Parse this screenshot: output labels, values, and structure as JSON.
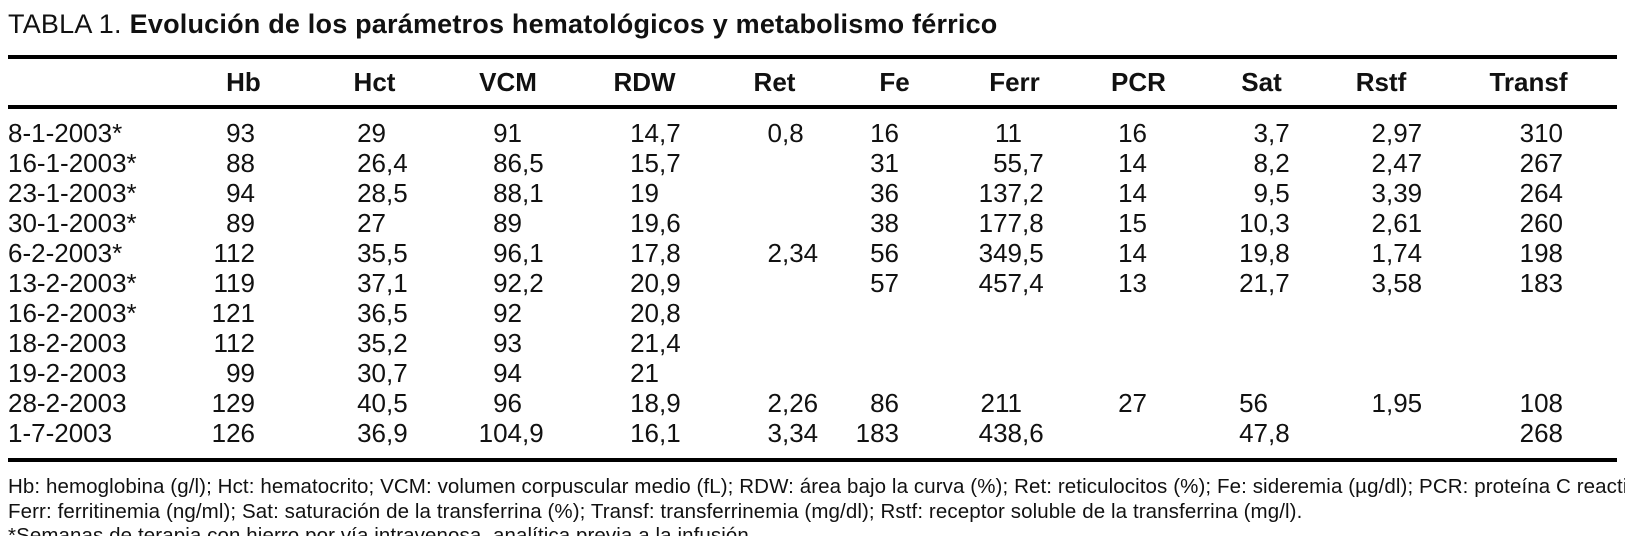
{
  "title": {
    "prefix": "TABLA 1.",
    "text": "Evolución de los parámetros hematológicos y metabolismo férrico"
  },
  "table": {
    "columns": [
      "Hb",
      "Hct",
      "VCM",
      "RDW",
      "Ret",
      "Fe",
      "Ferr",
      "PCR",
      "Sat",
      "Rstf",
      "Transf"
    ],
    "rows": [
      {
        "label": "8-1-2003*",
        "values": [
          "93",
          "29",
          "91",
          "14,7",
          "0,8",
          "16",
          "11",
          "16",
          "3,7",
          "2,97",
          "310"
        ]
      },
      {
        "label": "16-1-2003*",
        "values": [
          "88",
          "26,4",
          "86,5",
          "15,7",
          "",
          "31",
          "55,7",
          "14",
          "8,2",
          "2,47",
          "267"
        ]
      },
      {
        "label": "23-1-2003*",
        "values": [
          "94",
          "28,5",
          "88,1",
          "19",
          "",
          "36",
          "137,2",
          "14",
          "9,5",
          "3,39",
          "264"
        ]
      },
      {
        "label": "30-1-2003*",
        "values": [
          "89",
          "27",
          "89",
          "19,6",
          "",
          "38",
          "177,8",
          "15",
          "10,3",
          "2,61",
          "260"
        ]
      },
      {
        "label": "6-2-2003*",
        "values": [
          "112",
          "35,5",
          "96,1",
          "17,8",
          "2,34",
          "56",
          "349,5",
          "14",
          "19,8",
          "1,74",
          "198"
        ]
      },
      {
        "label": "13-2-2003*",
        "values": [
          "119",
          "37,1",
          "92,2",
          "20,9",
          "",
          "57",
          "457,4",
          "13",
          "21,7",
          "3,58",
          "183"
        ]
      },
      {
        "label": "16-2-2003*",
        "values": [
          "121",
          "36,5",
          "92",
          "20,8",
          "",
          "",
          "",
          "",
          "",
          "",
          ""
        ]
      },
      {
        "label": "18-2-2003",
        "values": [
          "112",
          "35,2",
          "93",
          "21,4",
          "",
          "",
          "",
          "",
          "",
          "",
          ""
        ]
      },
      {
        "label": "19-2-2003",
        "values": [
          "99",
          "30,7",
          "94",
          "21",
          "",
          "",
          "",
          "",
          "",
          "",
          ""
        ]
      },
      {
        "label": "28-2-2003",
        "values": [
          "129",
          "40,5",
          "96",
          "18,9",
          "2,26",
          "86",
          "211",
          "27",
          "56",
          "1,95",
          "108"
        ]
      },
      {
        "label": "1-7-2003",
        "values": [
          "126",
          "36,9",
          "104,9",
          "16,1",
          "3,34",
          "183",
          "438,6",
          "",
          "47,8",
          "",
          "268"
        ]
      }
    ]
  },
  "footnotes": [
    "Hb: hemoglobina (g/l); Hct: hematocrito; VCM: volumen corpuscular medio (fL); RDW: área bajo la curva (%); Ret: reticulocitos (%); Fe: sideremia (µg/dl); PCR: proteína C reactiva (mg/l);",
    "Ferr: ferritinemia (ng/ml); Sat: saturación de la transferrina (%); Transf: transferrinemia (mg/dl); Rstf: receptor soluble de la transferrina (mg/l).",
    "*Semanas de terapia con hierro por vía intravenosa, analítica previa a la infusión."
  ],
  "colors": {
    "text": "#111111",
    "rule": "#000000",
    "background": "#ffffff"
  }
}
